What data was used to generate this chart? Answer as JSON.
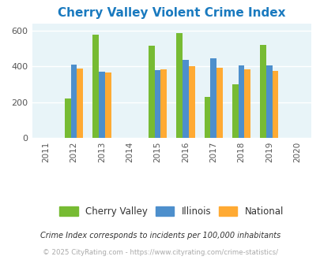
{
  "title": "Cherry Valley Violent Crime Index",
  "title_color": "#1a7abf",
  "years": [
    2012,
    2013,
    2015,
    2016,
    2017,
    2018,
    2019
  ],
  "cherry_valley": [
    220,
    575,
    515,
    585,
    228,
    298,
    518
  ],
  "illinois": [
    410,
    372,
    380,
    438,
    443,
    406,
    406
  ],
  "national": [
    388,
    365,
    381,
    399,
    394,
    382,
    376
  ],
  "colors": {
    "cherry_valley": "#77bb33",
    "illinois": "#4d8fcc",
    "national": "#ffaa33"
  },
  "xlim": [
    2010.5,
    2020.5
  ],
  "ylim": [
    0,
    640
  ],
  "yticks": [
    0,
    200,
    400,
    600
  ],
  "xticks": [
    2011,
    2012,
    2013,
    2014,
    2015,
    2016,
    2017,
    2018,
    2019,
    2020
  ],
  "background_color": "#e8f4f8",
  "legend_labels": [
    "Cherry Valley",
    "Illinois",
    "National"
  ],
  "footnote1": "Crime Index corresponds to incidents per 100,000 inhabitants",
  "footnote2": "© 2025 CityRating.com - https://www.cityrating.com/crime-statistics/",
  "bar_width": 0.22,
  "grid_color": "#ffffff"
}
